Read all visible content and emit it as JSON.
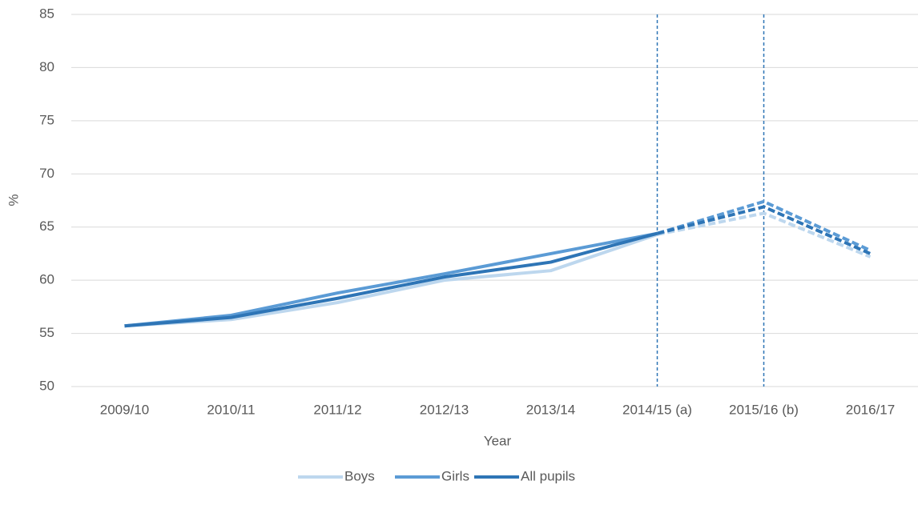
{
  "chart_data": {
    "type": "line",
    "x_label": "Year",
    "y_label": "%",
    "categories": [
      "2009/10",
      "2010/11",
      "2011/12",
      "2012/13",
      "2013/14",
      "2014/15 (a)",
      "2015/16 (b)",
      "2016/17"
    ],
    "series": [
      {
        "name": "Boys",
        "color": "#bdd7ee",
        "values": [
          55.7,
          56.3,
          57.9,
          60.0,
          60.9,
          64.3,
          66.3,
          62.2
        ]
      },
      {
        "name": "Girls",
        "color": "#5b9bd5",
        "values": [
          55.7,
          56.7,
          58.8,
          60.6,
          62.5,
          64.4,
          67.4,
          62.8
        ]
      },
      {
        "name": "All pupils",
        "color": "#2e75b6",
        "values": [
          55.7,
          56.5,
          58.3,
          60.3,
          61.7,
          64.4,
          66.9,
          62.5
        ]
      }
    ],
    "dashed_from": 5,
    "vlines": [
      5,
      6
    ],
    "ylim": [
      50,
      85
    ],
    "yticks": [
      50,
      55,
      60,
      65,
      70,
      75,
      80,
      85
    ],
    "grid": true,
    "legend": "bottom"
  }
}
